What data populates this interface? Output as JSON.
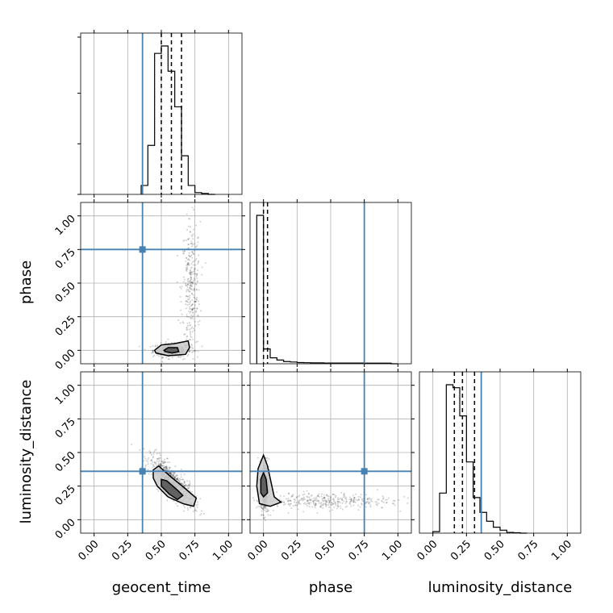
{
  "chart_data": {
    "type": "corner",
    "parameters": [
      "geocent_time",
      "phase",
      "luminosity_distance"
    ],
    "axis_range": [
      -0.1,
      1.1
    ],
    "tick_values": [
      0.0,
      0.25,
      0.5,
      0.75,
      1.0
    ],
    "tick_labels": [
      "0.00",
      "0.25",
      "0.50",
      "0.75",
      "1.00"
    ],
    "truths": {
      "geocent_time": 0.36,
      "phase": 0.75,
      "luminosity_distance": 0.36
    },
    "truth_color": "#4682b4",
    "grid": true,
    "histograms": [
      {
        "parameter": "geocent_time",
        "bin_edges": [
          0.35,
          0.4,
          0.45,
          0.5,
          0.55,
          0.6,
          0.65,
          0.7,
          0.75,
          0.8,
          0.85,
          0.9
        ],
        "counts": [
          0.06,
          0.33,
          0.95,
          1.0,
          0.83,
          0.59,
          0.26,
          0.06,
          0.012,
          0.006,
          0.0
        ],
        "quantile_lines": [
          0.5,
          0.575,
          0.65
        ]
      },
      {
        "parameter": "phase",
        "bin_edges": [
          -0.05,
          0.0,
          0.05,
          0.1,
          0.15,
          0.2,
          0.25,
          0.3,
          0.35,
          0.4,
          0.45,
          0.5,
          0.55,
          0.6,
          0.65,
          0.7,
          0.75,
          0.8,
          0.85,
          0.9,
          0.95,
          1.0
        ],
        "counts": [
          1.0,
          0.1,
          0.04,
          0.025,
          0.015,
          0.012,
          0.008,
          0.007,
          0.006,
          0.006,
          0.005,
          0.005,
          0.005,
          0.005,
          0.005,
          0.005,
          0.004,
          0.004,
          0.004,
          0.004,
          0.0
        ],
        "quantile_lines": [
          0.0,
          0.03
        ]
      },
      {
        "parameter": "luminosity_distance",
        "bin_edges": [
          0.0,
          0.05,
          0.1,
          0.15,
          0.2,
          0.25,
          0.3,
          0.35,
          0.4,
          0.45,
          0.5,
          0.55,
          0.6,
          0.65,
          0.7
        ],
        "counts": [
          0.01,
          0.27,
          1.0,
          0.98,
          0.79,
          0.48,
          0.24,
          0.14,
          0.08,
          0.04,
          0.02,
          0.005,
          0.003,
          0.0
        ],
        "quantile_lines": [
          0.16,
          0.22,
          0.31
        ]
      }
    ],
    "scatter_panels": [
      {
        "x": "geocent_time",
        "y": "phase",
        "clusters": [
          {
            "center": [
              0.58,
              0.0
            ],
            "spread": [
              0.07,
              0.025
            ],
            "n": 380
          },
          {
            "center": [
              0.72,
              0.45
            ],
            "spread": [
              0.035,
              0.25
            ],
            "n": 320
          }
        ],
        "contours": [
          {
            "level": "outer",
            "points": [
              [
                0.45,
                0.0
              ],
              [
                0.5,
                0.04
              ],
              [
                0.6,
                0.05
              ],
              [
                0.7,
                0.07
              ],
              [
                0.71,
                0.02
              ],
              [
                0.68,
                -0.03
              ],
              [
                0.55,
                -0.04
              ],
              [
                0.46,
                -0.02
              ]
            ]
          },
          {
            "level": "inner",
            "points": [
              [
                0.52,
                0.0
              ],
              [
                0.55,
                0.02
              ],
              [
                0.62,
                0.02
              ],
              [
                0.63,
                -0.01
              ],
              [
                0.58,
                -0.02
              ],
              [
                0.53,
                -0.01
              ]
            ]
          }
        ]
      },
      {
        "x": "geocent_time",
        "y": "luminosity_distance",
        "clusters": [
          {
            "center": [
              0.58,
              0.28
            ],
            "spread": [
              0.08,
              0.09
            ],
            "n": 700,
            "corr": -0.8
          }
        ],
        "contours": [
          {
            "level": "outer",
            "points": [
              [
                0.44,
                0.37
              ],
              [
                0.48,
                0.4
              ],
              [
                0.57,
                0.32
              ],
              [
                0.68,
                0.23
              ],
              [
                0.76,
                0.16
              ],
              [
                0.74,
                0.1
              ],
              [
                0.66,
                0.12
              ],
              [
                0.55,
                0.17
              ],
              [
                0.47,
                0.25
              ],
              [
                0.44,
                0.31
              ]
            ]
          },
          {
            "level": "inner",
            "points": [
              [
                0.5,
                0.3
              ],
              [
                0.54,
                0.29
              ],
              [
                0.62,
                0.22
              ],
              [
                0.66,
                0.18
              ],
              [
                0.62,
                0.15
              ],
              [
                0.56,
                0.19
              ],
              [
                0.5,
                0.25
              ]
            ]
          }
        ]
      },
      {
        "x": "phase",
        "y": "luminosity_distance",
        "clusters": [
          {
            "center": [
              0.01,
              0.25
            ],
            "spread": [
              0.015,
              0.1
            ],
            "n": 450
          },
          {
            "center": [
              0.45,
              0.14
            ],
            "spread": [
              0.25,
              0.03
            ],
            "n": 350
          }
        ],
        "contours": [
          {
            "level": "outer",
            "points": [
              [
                -0.04,
                0.38
              ],
              [
                0.0,
                0.48
              ],
              [
                0.03,
                0.4
              ],
              [
                0.08,
                0.17
              ],
              [
                0.13,
                0.13
              ],
              [
                0.05,
                0.1
              ],
              [
                -0.03,
                0.12
              ],
              [
                -0.05,
                0.25
              ]
            ]
          },
          {
            "level": "inner",
            "points": [
              [
                -0.02,
                0.3
              ],
              [
                0.0,
                0.35
              ],
              [
                0.02,
                0.3
              ],
              [
                0.03,
                0.2
              ],
              [
                0.0,
                0.17
              ],
              [
                -0.02,
                0.2
              ]
            ]
          }
        ]
      }
    ]
  }
}
